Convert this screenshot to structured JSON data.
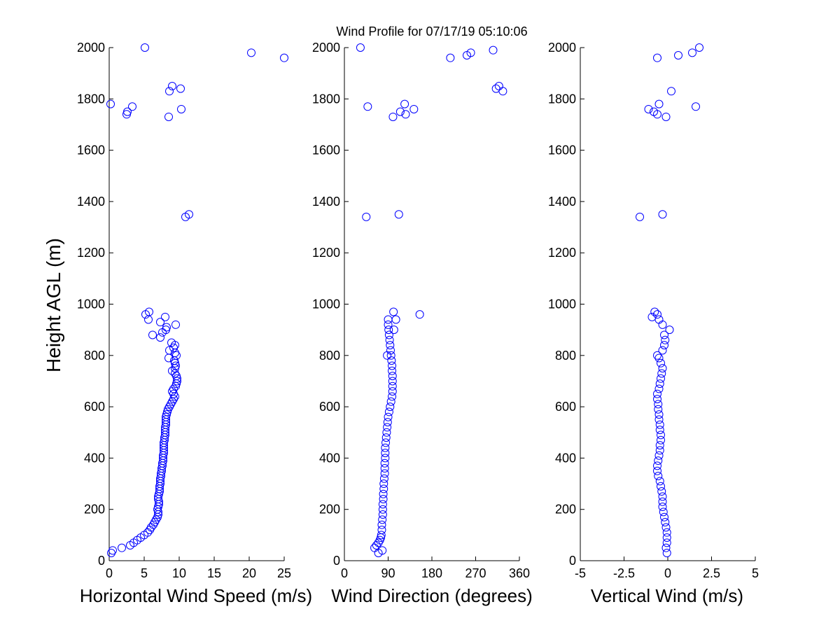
{
  "title": "Wind Profile for  07/17/19 05:10:06",
  "marker_color": "#0000ff",
  "chart_data": [
    {
      "type": "scatter",
      "xlabel": "Horizontal Wind Speed (m/s)",
      "ylabel": "Height AGL (m)",
      "xlim": [
        0,
        25
      ],
      "ylim": [
        0,
        2000
      ],
      "xticks": [
        "0",
        "5",
        "10",
        "15",
        "20",
        "25"
      ],
      "yticks": [
        "0",
        "200",
        "400",
        "600",
        "800",
        "1000",
        "1200",
        "1400",
        "1600",
        "1800",
        "2000"
      ],
      "grid": false,
      "points": [
        [
          0.3,
          30
        ],
        [
          0.5,
          40
        ],
        [
          1.8,
          50
        ],
        [
          3.0,
          60
        ],
        [
          3.5,
          70
        ],
        [
          4.0,
          80
        ],
        [
          4.5,
          90
        ],
        [
          5.0,
          100
        ],
        [
          5.5,
          110
        ],
        [
          5.8,
          120
        ],
        [
          6.0,
          130
        ],
        [
          6.3,
          140
        ],
        [
          6.5,
          150
        ],
        [
          6.7,
          160
        ],
        [
          6.9,
          170
        ],
        [
          7.0,
          180
        ],
        [
          7.0,
          190
        ],
        [
          6.9,
          200
        ],
        [
          7.0,
          210
        ],
        [
          7.1,
          220
        ],
        [
          7.1,
          230
        ],
        [
          7.0,
          240
        ],
        [
          7.0,
          250
        ],
        [
          7.1,
          260
        ],
        [
          7.2,
          270
        ],
        [
          7.2,
          280
        ],
        [
          7.2,
          290
        ],
        [
          7.3,
          300
        ],
        [
          7.3,
          310
        ],
        [
          7.3,
          320
        ],
        [
          7.4,
          330
        ],
        [
          7.4,
          340
        ],
        [
          7.5,
          350
        ],
        [
          7.5,
          360
        ],
        [
          7.6,
          370
        ],
        [
          7.6,
          380
        ],
        [
          7.7,
          390
        ],
        [
          7.7,
          400
        ],
        [
          7.7,
          410
        ],
        [
          7.8,
          420
        ],
        [
          7.8,
          430
        ],
        [
          7.8,
          440
        ],
        [
          7.8,
          450
        ],
        [
          7.8,
          460
        ],
        [
          7.9,
          470
        ],
        [
          7.9,
          480
        ],
        [
          8.0,
          490
        ],
        [
          8.0,
          500
        ],
        [
          8.0,
          510
        ],
        [
          8.0,
          520
        ],
        [
          8.1,
          530
        ],
        [
          8.1,
          540
        ],
        [
          8.1,
          550
        ],
        [
          8.1,
          560
        ],
        [
          8.2,
          570
        ],
        [
          8.3,
          580
        ],
        [
          8.4,
          590
        ],
        [
          8.6,
          600
        ],
        [
          8.8,
          610
        ],
        [
          9.0,
          620
        ],
        [
          9.2,
          630
        ],
        [
          9.4,
          640
        ],
        [
          9.2,
          650
        ],
        [
          9.0,
          660
        ],
        [
          9.2,
          670
        ],
        [
          9.5,
          680
        ],
        [
          9.6,
          690
        ],
        [
          9.7,
          700
        ],
        [
          9.7,
          710
        ],
        [
          9.6,
          720
        ],
        [
          9.4,
          730
        ],
        [
          9.0,
          740
        ],
        [
          9.4,
          750
        ],
        [
          9.5,
          760
        ],
        [
          9.4,
          770
        ],
        [
          9.3,
          780
        ],
        [
          8.5,
          790
        ],
        [
          9.6,
          800
        ],
        [
          9.4,
          810
        ],
        [
          8.6,
          820
        ],
        [
          9.2,
          830
        ],
        [
          9.4,
          840
        ],
        [
          8.9,
          850
        ],
        [
          6.2,
          880
        ],
        [
          7.3,
          870
        ],
        [
          7.6,
          890
        ],
        [
          8.1,
          900
        ],
        [
          8.2,
          910
        ],
        [
          9.5,
          920
        ],
        [
          7.3,
          930
        ],
        [
          5.6,
          940
        ],
        [
          5.2,
          960
        ],
        [
          5.7,
          970
        ],
        [
          8.0,
          950
        ],
        [
          11.4,
          1350
        ],
        [
          10.9,
          1340
        ],
        [
          0.2,
          1780
        ],
        [
          2.5,
          1740
        ],
        [
          2.6,
          1750
        ],
        [
          3.3,
          1770
        ],
        [
          8.5,
          1730
        ],
        [
          10.3,
          1760
        ],
        [
          8.6,
          1830
        ],
        [
          9.0,
          1850
        ],
        [
          10.2,
          1840
        ],
        [
          5.1,
          2000
        ],
        [
          20.3,
          1980
        ],
        [
          25.0,
          1960
        ]
      ]
    },
    {
      "type": "scatter",
      "xlabel": "Wind Direction (degrees)",
      "ylabel": "",
      "xlim": [
        0,
        360
      ],
      "ylim": [
        0,
        2000
      ],
      "xticks": [
        "0",
        "90",
        "180",
        "270",
        "360"
      ],
      "yticks": [
        "0",
        "200",
        "400",
        "600",
        "800",
        "1000",
        "1200",
        "1400",
        "1600",
        "1800",
        "2000"
      ],
      "grid": false,
      "points": [
        [
          70,
          30
        ],
        [
          78,
          40
        ],
        [
          62,
          50
        ],
        [
          66,
          60
        ],
        [
          70,
          70
        ],
        [
          73,
          80
        ],
        [
          75,
          90
        ],
        [
          76,
          100
        ],
        [
          77,
          120
        ],
        [
          77,
          140
        ],
        [
          78,
          160
        ],
        [
          79,
          180
        ],
        [
          79,
          200
        ],
        [
          79,
          220
        ],
        [
          80,
          240
        ],
        [
          80,
          260
        ],
        [
          81,
          280
        ],
        [
          81,
          300
        ],
        [
          82,
          320
        ],
        [
          83,
          340
        ],
        [
          83,
          360
        ],
        [
          83,
          380
        ],
        [
          84,
          400
        ],
        [
          84,
          420
        ],
        [
          84,
          440
        ],
        [
          85,
          460
        ],
        [
          86,
          480
        ],
        [
          87,
          500
        ],
        [
          88,
          520
        ],
        [
          89,
          540
        ],
        [
          90,
          560
        ],
        [
          92,
          580
        ],
        [
          94,
          600
        ],
        [
          96,
          620
        ],
        [
          98,
          640
        ],
        [
          99,
          660
        ],
        [
          99,
          680
        ],
        [
          99,
          700
        ],
        [
          99,
          720
        ],
        [
          98,
          740
        ],
        [
          98,
          760
        ],
        [
          97,
          780
        ],
        [
          96,
          800
        ],
        [
          95,
          820
        ],
        [
          94,
          840
        ],
        [
          93,
          860
        ],
        [
          92,
          880
        ],
        [
          91,
          900
        ],
        [
          90,
          920
        ],
        [
          90,
          940
        ],
        [
          88,
          800
        ],
        [
          102,
          900
        ],
        [
          106,
          940
        ],
        [
          101,
          970
        ],
        [
          155,
          960
        ],
        [
          45,
          1340
        ],
        [
          112,
          1350
        ],
        [
          48,
          1770
        ],
        [
          100,
          1730
        ],
        [
          115,
          1750
        ],
        [
          124,
          1780
        ],
        [
          126,
          1740
        ],
        [
          143,
          1760
        ],
        [
          33,
          2000
        ],
        [
          218,
          1960
        ],
        [
          252,
          1970
        ],
        [
          260,
          1980
        ],
        [
          306,
          1990
        ],
        [
          312,
          1840
        ],
        [
          318,
          1850
        ],
        [
          326,
          1830
        ]
      ]
    },
    {
      "type": "scatter",
      "xlabel": "Vertical Wind (m/s)",
      "ylabel": "",
      "xlim": [
        -5,
        5
      ],
      "ylim": [
        0,
        2000
      ],
      "xticks": [
        "-5",
        "-2.5",
        "0",
        "2.5",
        "5"
      ],
      "yticks": [
        "0",
        "200",
        "400",
        "600",
        "800",
        "1000",
        "1200",
        "1400",
        "1600",
        "1800",
        "2000"
      ],
      "grid": false,
      "points": [
        [
          -0.05,
          30
        ],
        [
          -0.1,
          50
        ],
        [
          -0.05,
          70
        ],
        [
          -0.05,
          90
        ],
        [
          -0.05,
          110
        ],
        [
          -0.1,
          130
        ],
        [
          -0.15,
          150
        ],
        [
          -0.2,
          170
        ],
        [
          -0.25,
          190
        ],
        [
          -0.3,
          210
        ],
        [
          -0.3,
          230
        ],
        [
          -0.3,
          250
        ],
        [
          -0.35,
          270
        ],
        [
          -0.4,
          290
        ],
        [
          -0.45,
          310
        ],
        [
          -0.55,
          330
        ],
        [
          -0.6,
          350
        ],
        [
          -0.6,
          370
        ],
        [
          -0.55,
          390
        ],
        [
          -0.5,
          410
        ],
        [
          -0.45,
          430
        ],
        [
          -0.45,
          450
        ],
        [
          -0.4,
          470
        ],
        [
          -0.4,
          490
        ],
        [
          -0.45,
          510
        ],
        [
          -0.45,
          530
        ],
        [
          -0.5,
          550
        ],
        [
          -0.5,
          570
        ],
        [
          -0.55,
          590
        ],
        [
          -0.55,
          610
        ],
        [
          -0.6,
          630
        ],
        [
          -0.6,
          650
        ],
        [
          -0.5,
          670
        ],
        [
          -0.45,
          690
        ],
        [
          -0.4,
          710
        ],
        [
          -0.35,
          730
        ],
        [
          -0.3,
          750
        ],
        [
          -0.4,
          770
        ],
        [
          -0.5,
          790
        ],
        [
          -0.6,
          800
        ],
        [
          -0.3,
          820
        ],
        [
          -0.2,
          840
        ],
        [
          -0.15,
          860
        ],
        [
          -0.2,
          880
        ],
        [
          0.1,
          900
        ],
        [
          -0.3,
          920
        ],
        [
          -0.5,
          940
        ],
        [
          -0.6,
          960
        ],
        [
          -0.75,
          970
        ],
        [
          -0.9,
          950
        ],
        [
          -1.6,
          1340
        ],
        [
          -0.3,
          1350
        ],
        [
          -1.1,
          1760
        ],
        [
          -0.6,
          1740
        ],
        [
          -0.8,
          1750
        ],
        [
          -0.5,
          1780
        ],
        [
          -0.1,
          1730
        ],
        [
          0.2,
          1830
        ],
        [
          1.6,
          1770
        ],
        [
          -0.6,
          1960
        ],
        [
          0.6,
          1970
        ],
        [
          1.4,
          1980
        ],
        [
          1.8,
          2000
        ]
      ]
    }
  ]
}
